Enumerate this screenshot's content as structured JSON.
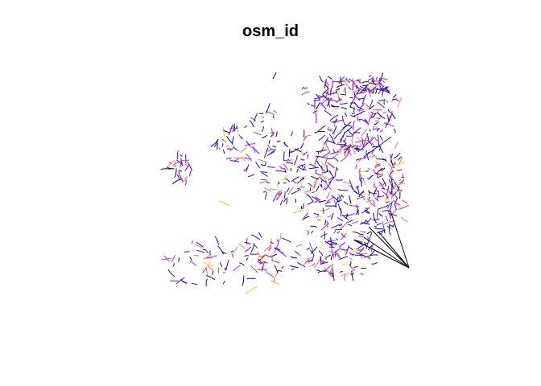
{
  "plot": {
    "title": "osm_id"
  },
  "colors": {
    "palette": [
      "#0d0887",
      "#2a06d2",
      "#5a02b8",
      "#8b04c8",
      "#b22bd9",
      "#d3399e",
      "#e8558a",
      "#f27a6a",
      "#f7a23a",
      "#f0d020"
    ],
    "connector": "#000000"
  }
}
